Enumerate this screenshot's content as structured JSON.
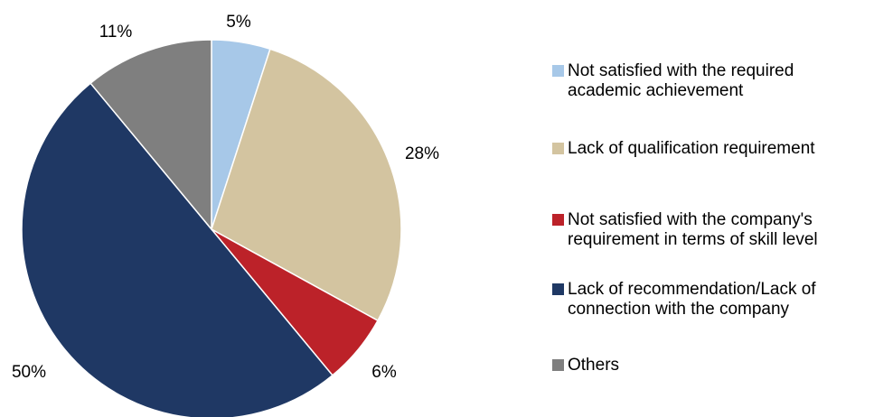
{
  "chart_data": {
    "type": "pie",
    "title": "",
    "slices": [
      {
        "label": "Not satisfied with the required\nacademic achievement",
        "value": 5,
        "display": "5%",
        "color": "#a7c8e8"
      },
      {
        "label": "Lack of qualification requirement",
        "value": 28,
        "display": "28%",
        "color": "#d3c4a0"
      },
      {
        "label": "Not satisfied with the company's\nrequirement in terms of skill level",
        "value": 6,
        "display": "6%",
        "color": "#bc2229"
      },
      {
        "label": "Lack of recommendation/Lack of\nconnection with the company",
        "value": 50,
        "display": "50%",
        "color": "#1f3864"
      },
      {
        "label": "Others",
        "value": 11,
        "display": "11%",
        "color": "#7f7f7f"
      }
    ],
    "legend_position": "right",
    "start_angle_deg": 0,
    "direction": "clockwise"
  }
}
